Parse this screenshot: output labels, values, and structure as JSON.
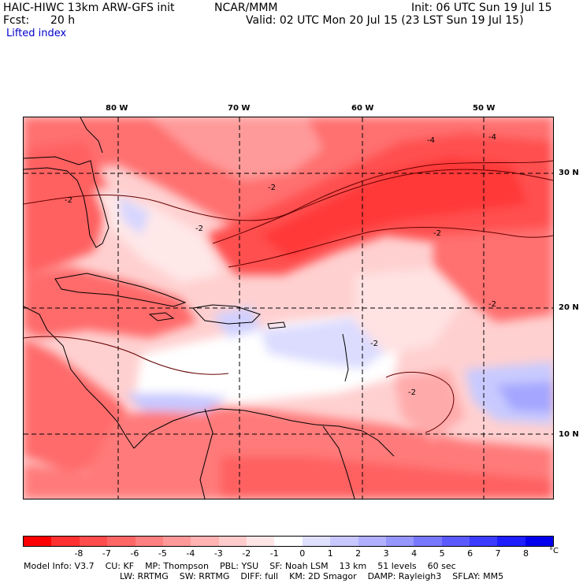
{
  "header": {
    "model_title": "HAIC-HIWC 13km ARW-GFS init",
    "center": "NCAR/MMM",
    "init": "Init: 06 UTC Sun 19 Jul 15",
    "fcst_label": "Fcst:",
    "fcst_value": "20 h",
    "valid": "Valid: 02 UTC Mon 20 Jul 15 (23 LST Sun 19 Jul 15)",
    "field_name": "Lifted index"
  },
  "map": {
    "longitude_labels": [
      "80 W",
      "70 W",
      "60 W",
      "50 W"
    ],
    "latitude_labels": [
      "30 N",
      "20 N",
      "10 N"
    ],
    "contour_labels": [
      "-2",
      "-2",
      "-2",
      "-2",
      "-4",
      "-4",
      "-2",
      "-2",
      "-2"
    ],
    "colors": {
      "strong_unstable": "#ff3333",
      "unstable": "#ff6e6e",
      "moderate": "#ffa8a8",
      "weak": "#ffd6d6",
      "neutral": "#ffffff",
      "stable": "#c4c8ff",
      "more_stable": "#9b9dfa"
    }
  },
  "colorbar": {
    "unit": "°C",
    "colors": [
      "#ff0000",
      "#ff3030",
      "#ff4d4d",
      "#ff6666",
      "#ff8080",
      "#ff9999",
      "#ffb3b3",
      "#ffcccc",
      "#ffe6e6",
      "#ffffff",
      "#e0e0ff",
      "#c8c8ff",
      "#b0b0ff",
      "#9696ff",
      "#7878ff",
      "#5a5aff",
      "#3c3cff",
      "#1e1eff",
      "#0000ee"
    ],
    "labels": [
      "-8",
      "-7",
      "-6",
      "-5",
      "-4",
      "-3",
      "-2",
      "-1",
      "0",
      "1",
      "2",
      "3",
      "4",
      "5",
      "6",
      "7",
      "8"
    ]
  },
  "model_info": {
    "line1": [
      {
        "key": "Model Info:",
        "value": "V3.7"
      },
      {
        "key": "CU:",
        "value": "KF"
      },
      {
        "key": "MP:",
        "value": "Thompson"
      },
      {
        "key": "PBL:",
        "value": "YSU"
      },
      {
        "key": "SF:",
        "value": "Noah LSM"
      },
      {
        "key": "",
        "value": "13 km"
      },
      {
        "key": "",
        "value": "51 levels"
      },
      {
        "key": "",
        "value": "60 sec"
      }
    ],
    "line2": [
      {
        "key": "LW:",
        "value": "RRTMG"
      },
      {
        "key": "SW:",
        "value": "RRTMG"
      },
      {
        "key": "DIFF:",
        "value": "full"
      },
      {
        "key": "KM:",
        "value": "2D Smagor"
      },
      {
        "key": "DAMP:",
        "value": "Rayleigh3"
      },
      {
        "key": "SFLAY:",
        "value": "MM5"
      }
    ]
  }
}
